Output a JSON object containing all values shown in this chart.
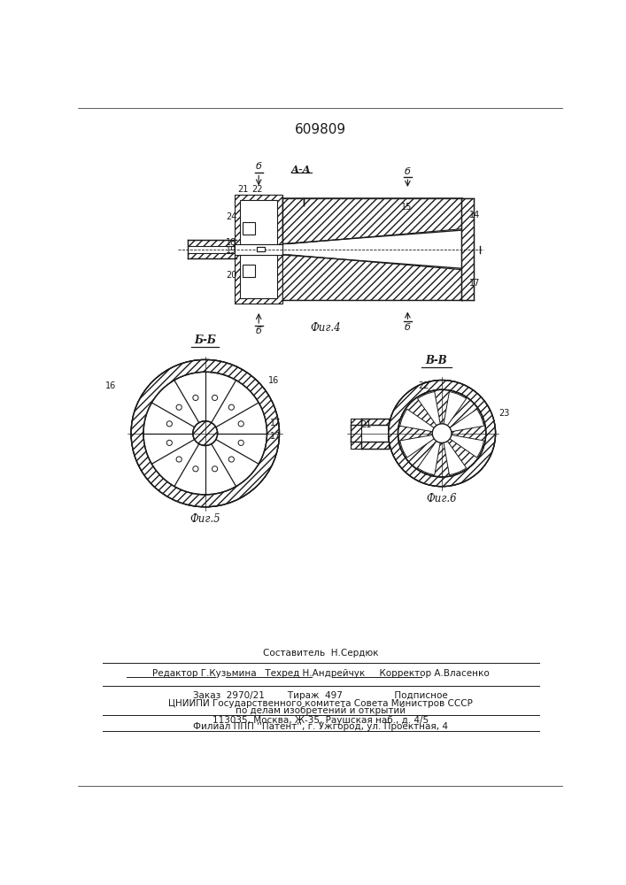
{
  "patent_number": "609809",
  "fig4_label": "Фиг.4",
  "fig5_label": "Фиг.5",
  "fig6_label": "Фиг.6",
  "section_AA": "А-А",
  "section_BB": "Б-Б",
  "section_VV": "В-В",
  "background": "#ffffff",
  "lc": "#1a1a1a",
  "footer_composer": "Составитель  Н.Сердюк",
  "footer_editor": "Редактор Г.Кузьмина   Техред Н.Андрейчук     Корректор А.Власенко",
  "footer_order": "Заказ  2970/21        Тираж  497                  Подписное",
  "footer_org": "ЦНИИПИ Государственного комитета Совета Министров СССР",
  "footer_dept": "по делам изобретений и открытий",
  "footer_addr": "113035, Москва, Ж-35, Раушская наб., д. 4/5",
  "footer_branch": "Филиал ППП ''Патент'', г. Ужгород, ул. Проектная, 4"
}
